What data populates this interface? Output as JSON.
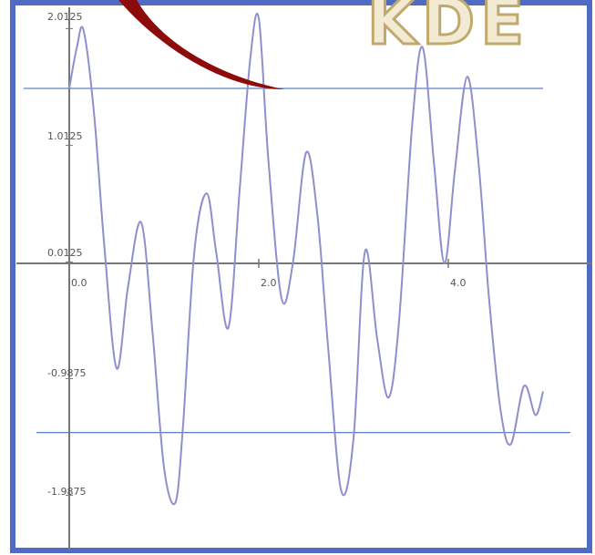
{
  "colors": {
    "frame": "#4f6bc4",
    "axis": "#777777",
    "curve": "#8d8fcf",
    "hline": "#5b7fd0",
    "swoosh_dark": "#8e0b0b",
    "swoosh_light": "#cf2a2a",
    "logo_fill": "#f2ead2",
    "logo_stroke": "#bfa96d"
  },
  "logo": {
    "text": "KDE"
  },
  "chart_data": {
    "type": "line",
    "title": "",
    "xlabel": "",
    "ylabel": "",
    "x_tick_labels": [
      {
        "value": 0.0,
        "label": "0.0"
      },
      {
        "value": 2.0,
        "label": "2.0"
      },
      {
        "value": 4.0,
        "label": "4.0"
      }
    ],
    "y_tick_labels": [
      {
        "value": 2.0125,
        "label": "2.0125"
      },
      {
        "value": 1.0125,
        "label": "1.0125"
      },
      {
        "value": 0.0125,
        "label": "0.0125"
      },
      {
        "value": -0.9875,
        "label": "-0.9875"
      },
      {
        "value": -1.9875,
        "label": "-1.9875"
      }
    ],
    "xlim": [
      0,
      5.05
    ],
    "ylim": [
      -2.4,
      2.2
    ],
    "reference_lines": [
      1.5,
      -1.45
    ],
    "series": [
      {
        "x": [
          0.0,
          0.08,
          0.15,
          0.26,
          0.37,
          0.5,
          0.62,
          0.76,
          0.88,
          1.0,
          1.12,
          1.2,
          1.32,
          1.45,
          1.55,
          1.68,
          1.8,
          1.91,
          2.0,
          2.1,
          2.24,
          2.36,
          2.5,
          2.62,
          2.73,
          2.87,
          3.0,
          3.12,
          3.25,
          3.37,
          3.48,
          3.62,
          3.73,
          3.85,
          3.96,
          4.07,
          4.2,
          4.32,
          4.43,
          4.55,
          4.66,
          4.8,
          4.92,
          5.0
        ],
        "y": [
          1.5,
          1.85,
          2.0,
          1.3,
          0.15,
          -0.9,
          -0.2,
          0.35,
          -0.6,
          -1.75,
          -2.05,
          -1.4,
          0.1,
          0.6,
          0.1,
          -0.55,
          0.65,
          1.75,
          2.1,
          0.9,
          -0.3,
          0.0,
          0.95,
          0.4,
          -0.7,
          -1.95,
          -1.5,
          0.1,
          -0.65,
          -1.15,
          -0.5,
          1.2,
          1.85,
          0.85,
          0.0,
          0.8,
          1.6,
          0.85,
          -0.3,
          -1.25,
          -1.55,
          -1.05,
          -1.3,
          -1.1
        ]
      }
    ]
  }
}
